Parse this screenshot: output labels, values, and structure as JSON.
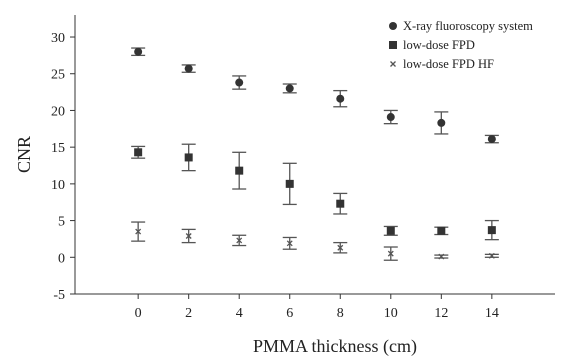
{
  "chart_data": {
    "type": "scatter",
    "title": "",
    "xlabel": "PMMA thickness (cm)",
    "ylabel": "CNR",
    "x": [
      0,
      2,
      4,
      6,
      8,
      10,
      12,
      14
    ],
    "xticks": [
      "0",
      "2",
      "4",
      "6",
      "8",
      "10",
      "12",
      "14"
    ],
    "xlim": [
      -2.5,
      16.5
    ],
    "ylim": [
      -5,
      33
    ],
    "yticks": [
      "-5",
      "0",
      "5",
      "10",
      "15",
      "20",
      "25",
      "30"
    ],
    "grid": false,
    "legend_position": "top-right",
    "series": [
      {
        "name": "X-ray fluoroscopy system",
        "marker": "circle",
        "color": "#333333",
        "values": [
          28.0,
          25.7,
          23.8,
          23.0,
          21.6,
          19.1,
          18.3,
          16.1
        ],
        "err_low": [
          0.5,
          0.5,
          0.9,
          0.6,
          1.1,
          0.9,
          1.5,
          0.5
        ],
        "err_high": [
          0.5,
          0.5,
          0.9,
          0.6,
          1.1,
          0.9,
          1.5,
          0.5
        ]
      },
      {
        "name": "low-dose FPD",
        "marker": "square",
        "color": "#333333",
        "values": [
          14.3,
          13.6,
          11.8,
          10.0,
          7.3,
          3.6,
          3.6,
          3.7
        ],
        "err_low": [
          0.8,
          1.8,
          2.5,
          2.8,
          1.4,
          0.6,
          0.5,
          1.3
        ],
        "err_high": [
          0.8,
          1.8,
          2.5,
          2.8,
          1.4,
          0.6,
          0.5,
          1.3
        ]
      },
      {
        "name": "low-dose FPD HF",
        "marker": "x",
        "color": "#555555",
        "values": [
          3.5,
          2.9,
          2.3,
          1.9,
          1.3,
          0.5,
          0.1,
          0.2
        ],
        "err_low": [
          1.3,
          0.9,
          0.7,
          0.8,
          0.7,
          0.9,
          0.2,
          0.2
        ],
        "err_high": [
          1.3,
          0.9,
          0.7,
          0.8,
          0.7,
          0.9,
          0.2,
          0.2
        ]
      }
    ]
  }
}
